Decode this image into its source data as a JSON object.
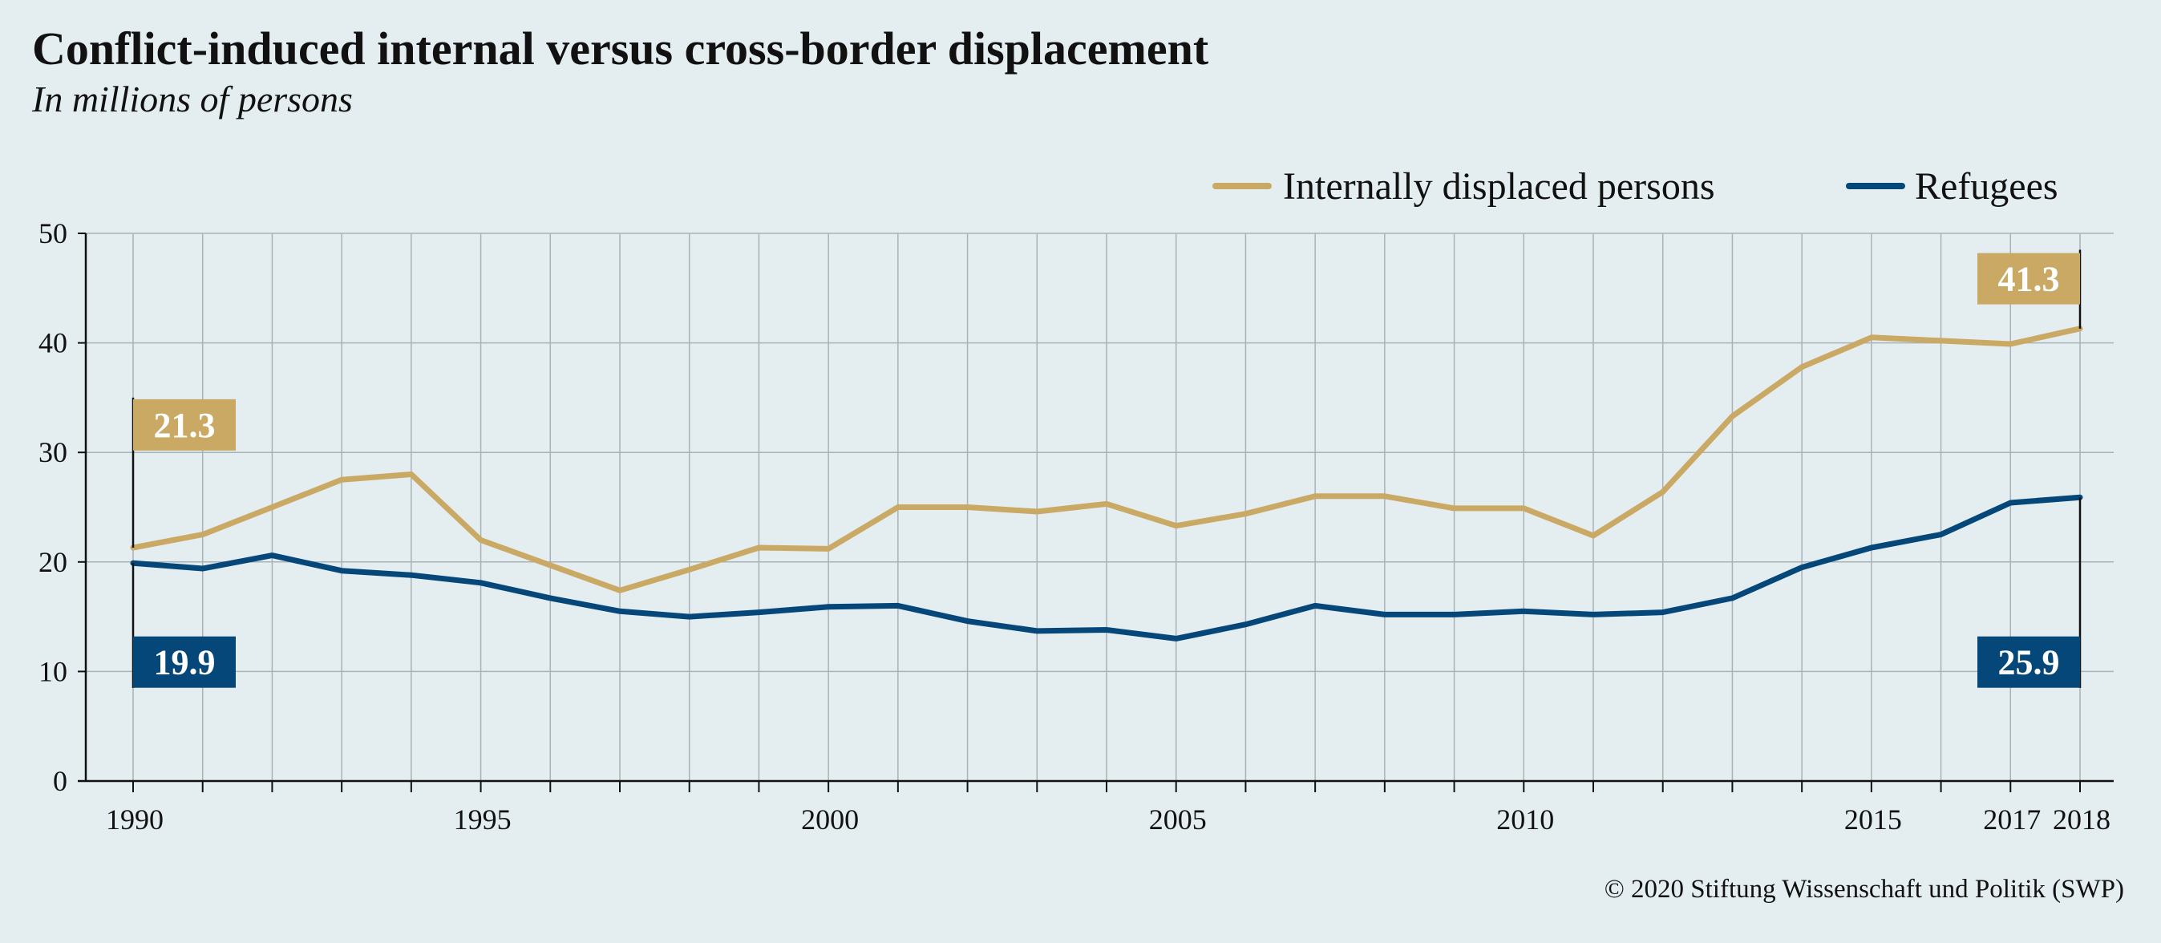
{
  "chart_data": {
    "type": "line",
    "title": "Conflict-induced internal versus cross-border displacement",
    "subtitle": "In millions of persons",
    "x": [
      1990,
      1991,
      1992,
      1993,
      1994,
      1995,
      1996,
      1997,
      1998,
      1999,
      2000,
      2001,
      2002,
      2003,
      2004,
      2005,
      2006,
      2007,
      2008,
      2009,
      2010,
      2011,
      2012,
      2013,
      2014,
      2015,
      2016,
      2017,
      2018
    ],
    "x_tick_labels": [
      "1990",
      "1995",
      "2000",
      "2005",
      "2010",
      "2015",
      "2017",
      "2018"
    ],
    "y_ticks": [
      "0",
      "10",
      "20",
      "30",
      "40",
      "50"
    ],
    "ylim": [
      0,
      50
    ],
    "xlim": [
      1990,
      2018
    ],
    "grid": true,
    "legend_position": "top-right",
    "series": [
      {
        "name": "Internally displaced persons",
        "color": "#c9a964",
        "values": [
          21.3,
          22.5,
          25.0,
          27.5,
          28.0,
          22.0,
          19.7,
          17.4,
          19.3,
          21.3,
          21.2,
          25.0,
          25.0,
          24.6,
          25.3,
          23.3,
          24.4,
          26.0,
          26.0,
          24.9,
          24.9,
          22.4,
          26.4,
          33.3,
          37.8,
          40.5,
          40.2,
          39.9,
          41.3
        ]
      },
      {
        "name": "Refugees",
        "color": "#06477a",
        "values": [
          19.9,
          19.4,
          20.6,
          19.2,
          18.8,
          18.1,
          16.7,
          15.5,
          15.0,
          15.4,
          15.9,
          16.0,
          14.6,
          13.7,
          13.8,
          13.0,
          14.3,
          16.0,
          15.2,
          15.2,
          15.5,
          15.2,
          15.4,
          16.7,
          19.5,
          21.3,
          22.5,
          25.4,
          25.9
        ]
      }
    ],
    "callouts": [
      {
        "label": "21.3",
        "series": 0,
        "year": 1990
      },
      {
        "label": "19.9",
        "series": 1,
        "year": 1990
      },
      {
        "label": "41.3",
        "series": 0,
        "year": 2018
      },
      {
        "label": "25.9",
        "series": 1,
        "year": 2018
      }
    ]
  },
  "copyright": "© 2020 Stiftung Wissenschaft und Politik (SWP)"
}
